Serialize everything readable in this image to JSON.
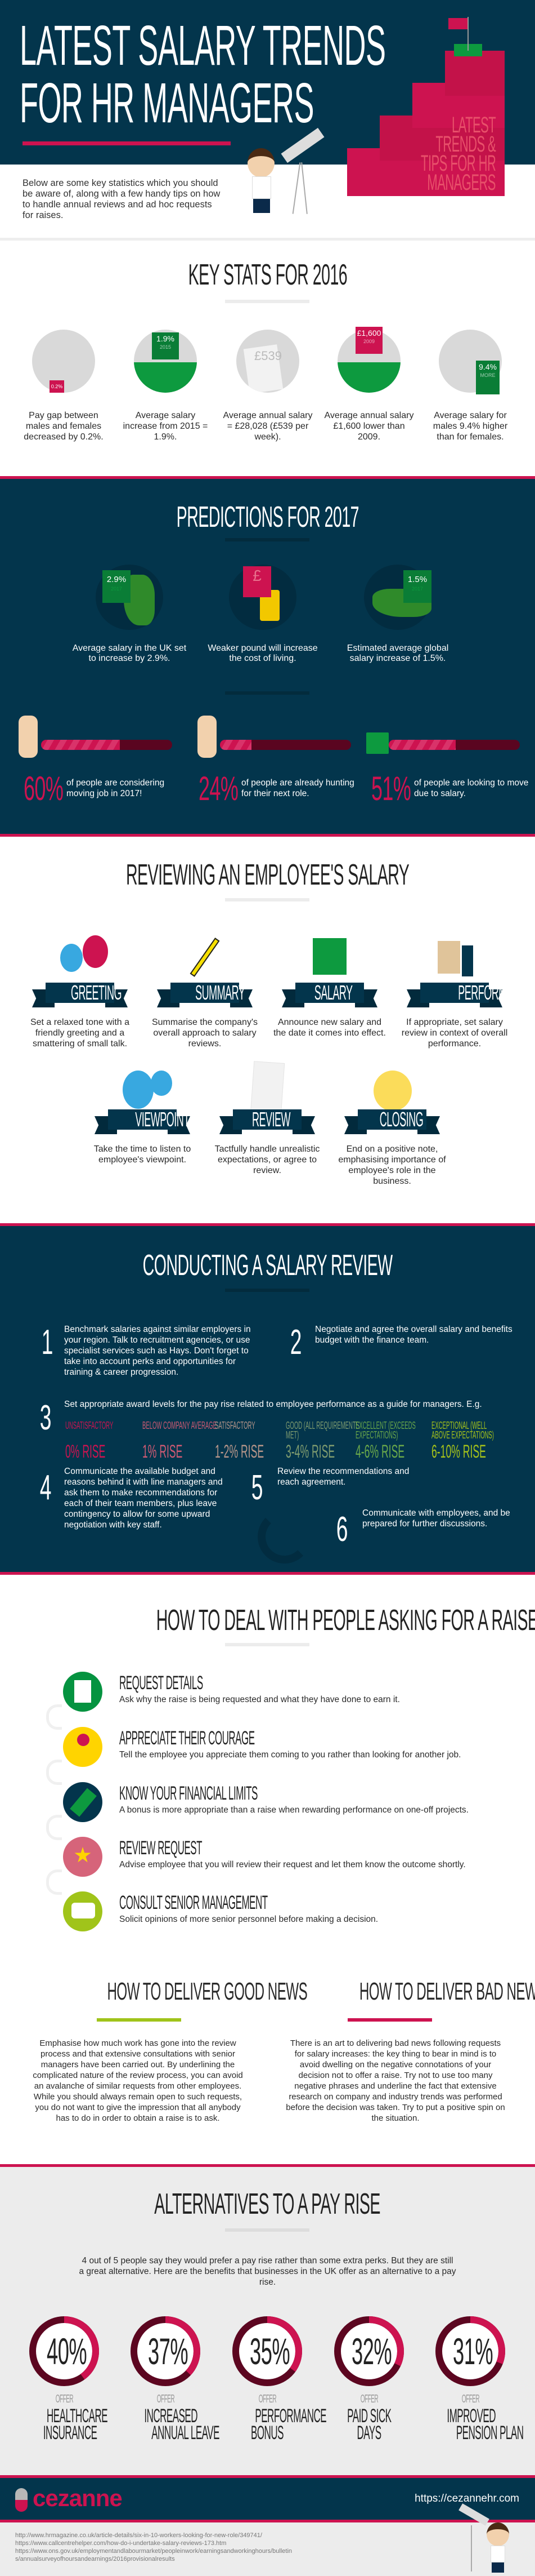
{
  "colors": {
    "navy": "#03354c",
    "pink": "#cd1350",
    "green": "#059340",
    "lime": "#a0c41a",
    "yellow": "#ffd400"
  },
  "hero": {
    "title_line1": "LATEST SALARY TRENDS",
    "title_line2": "FOR HR MANAGERS",
    "stairs_text": [
      "LATEST",
      "TRENDS &",
      "TIPS FOR HR",
      "MANAGERS"
    ],
    "intro": "Below are some key statistics which you should be aware of, along with a few handy tips on how to handle annual reviews and ad hoc requests for raises."
  },
  "key_stats": {
    "title": "KEY STATS FOR 2016",
    "items": [
      {
        "icon": "couple-icon",
        "badge": "0.2%",
        "text": "Pay gap between males and females decreased by 0.2%."
      },
      {
        "icon": "arrow-up-money-icon",
        "badge": "1.9%",
        "badge_sub": "2015",
        "text": "Average salary increase from 2015 = 1.9%."
      },
      {
        "icon": "payslip-icon",
        "badge": "£539",
        "text": "Average annual salary = £28,028 (£539 per week)."
      },
      {
        "icon": "arrow-down-money-icon",
        "badge": "£1,600",
        "badge_sub": "2009",
        "text": "Average annual salary £1,600 lower than 2009."
      },
      {
        "icon": "man-arrow-up-icon",
        "badge": "9.4%",
        "badge_sub": "MORE",
        "text": "Average salary for males 9.4% higher than for females."
      }
    ]
  },
  "predictions": {
    "title": "PREDICTIONS FOR 2017",
    "items": [
      {
        "icon": "uk-map-icon",
        "badge": "2.9%",
        "badge_sub": "2017",
        "text": "Average salary in the UK set to increase by 2.9%."
      },
      {
        "icon": "pound-coins-icon",
        "badge": "£",
        "text": "Weaker pound will increase the cost of living."
      },
      {
        "icon": "world-map-icon",
        "badge": "1.5%",
        "badge_sub": "2017",
        "text": "Estimated average global salary increase of 1.5%."
      }
    ],
    "stats": [
      {
        "value": "60%",
        "percent": 60,
        "text": "of people are considering moving job in 2017!"
      },
      {
        "value": "24%",
        "percent": 24,
        "text": "of people are already hunting for their next role."
      },
      {
        "value": "51%",
        "percent": 51,
        "text": "of people are looking to move due to salary."
      }
    ]
  },
  "reviewing": {
    "title": "REVIEWING AN EMPLOYEE'S SALARY",
    "steps": [
      {
        "label": "GREETING",
        "icon": "speech-bubbles-icon",
        "text": "Set a relaxed tone with a friendly greeting and a smattering of small talk."
      },
      {
        "label": "SUMMARY",
        "icon": "pencil-icon",
        "text": "Summarise the company's overall approach to salary reviews."
      },
      {
        "label": "SALARY",
        "icon": "money-stacks-icon",
        "text": "Announce new salary and the date it comes into effect."
      },
      {
        "label": "PERFORMANCE",
        "icon": "thumbs-up-icon",
        "text": "If appropriate, set salary review in context of overall performance."
      },
      {
        "label": "VIEWPOINT",
        "icon": "chat-bubbles-icon",
        "text": "Take the time to listen to employee's viewpoint."
      },
      {
        "label": "REVIEW",
        "icon": "checklist-icon",
        "text": "Tactfully handle unrealistic expectations, or agree to review."
      },
      {
        "label": "CLOSING",
        "icon": "smiley-icon",
        "text": "End on a positive note, emphasising importance of employee's role in the business."
      }
    ]
  },
  "conducting": {
    "title": "CONDUCTING A SALARY REVIEW",
    "steps": [
      {
        "n": "1",
        "text": "Benchmark salaries against similar employers in your region. Talk to recruitment agencies, or use specialist services such as Hays. Don't forget to take into account perks and opportunities for training & career progression."
      },
      {
        "n": "2",
        "text": "Negotiate and agree the overall salary and benefits budget with the finance team."
      },
      {
        "n": "3",
        "text": "Set appropriate award levels for the pay rise related to employee performance as a guide for managers. E.g."
      },
      {
        "n": "4",
        "text": "Communicate the available budget and reasons behind it with line managers and ask them to make recommendations for each of their team members, plus leave contingency to allow for some upward negotiation with key staff."
      },
      {
        "n": "5",
        "text": "Review the recommendations and reach agreement."
      },
      {
        "n": "6",
        "text": "Communicate with employees, and be prepared for further discussions."
      }
    ],
    "levels": [
      {
        "label": "UNSATISFACTORY",
        "rise": "0% RISE",
        "color": "#cd1350"
      },
      {
        "label": "BELOW COMPANY AVERAGE",
        "rise": "1% RISE",
        "color": "#cf5a73"
      },
      {
        "label": "SATISFACTORY",
        "rise": "1-2% RISE",
        "color": "#b7968a"
      },
      {
        "label": "GOOD (ALL REQUIREMENTS MET)",
        "rise": "3-4% RISE",
        "color": "#7f9c6f"
      },
      {
        "label": "EXCELLENT (EXCEEDS EXPECTATIONS)",
        "rise": "4-6% RISE",
        "color": "#6aa84a"
      },
      {
        "label": "EXCEPTIONAL (WELL ABOVE EXPECTATIONS)",
        "rise": "6-10% RISE",
        "color": "#a5c21a"
      }
    ]
  },
  "raise": {
    "title": "HOW TO DEAL WITH PEOPLE ASKING FOR A RAISE",
    "items": [
      {
        "title": "REQUEST DETAILS",
        "icon": "document-icon",
        "color": "#059340",
        "text": "Ask why the raise is being requested and what they have done to earn it."
      },
      {
        "title": "APPRECIATE THEIR COURAGE",
        "icon": "award-ribbon-icon",
        "color": "#ffd400",
        "text": "Tell the employee you appreciate them coming to you rather than looking for another job."
      },
      {
        "title": "KNOW YOUR FINANCIAL LIMITS",
        "icon": "banknote-icon",
        "color": "#03354c",
        "text": "A bonus is more appropriate than a raise when rewarding performance on one-off projects."
      },
      {
        "title": "REVIEW REQUEST",
        "icon": "star-icon",
        "color": "#d6647a",
        "text": "Advise employee that you will review their request and let them know the outcome shortly."
      },
      {
        "title": "CONSULT SENIOR MANAGEMENT",
        "icon": "chat-icon",
        "color": "#a0c41a",
        "text": "Solicit opinions of more senior personnel before making a decision."
      }
    ]
  },
  "news": {
    "good_title": "HOW TO DELIVER GOOD NEWS",
    "good_text": "Emphasise how much work has gone into the review process and that extensive consultations with senior managers have been carried out. By underlining the complicated nature of the review process, you can avoid an avalanche of similar requests from other employees. While you should always remain open to such requests, you do not want to give the impression that all anybody has to do in order to obtain a raise is to ask.",
    "bad_title": "HOW TO DELIVER BAD NEWS",
    "bad_text": "There is an art to delivering bad news following requests for salary increases: the key thing to bear in mind is to avoid dwelling on the negative connotations of your decision not to offer a raise. Try not to use too many negative phrases and underline the fact that extensive research on company and industry trends was performed before the decision was taken. Try to put a positive spin on the situation."
  },
  "alternatives": {
    "title": "ALTERNATIVES TO A PAY RISE",
    "intro": "4 out of 5 people say they would prefer a pay rise rather than some extra perks. But they are still a great alternative. Here are the benefits that businesses in the UK offer as an alternative to a pay rise.",
    "offer_label": "OFFER",
    "items": [
      {
        "value": "40%",
        "percent": 40,
        "label": [
          "HEALTHCARE",
          "INSURANCE"
        ]
      },
      {
        "value": "37%",
        "percent": 37,
        "label": [
          "INCREASED",
          "ANNUAL LEAVE"
        ]
      },
      {
        "value": "35%",
        "percent": 35,
        "label": [
          "PERFORMANCE",
          "BONUS"
        ]
      },
      {
        "value": "32%",
        "percent": 32,
        "label": [
          "PAID SICK",
          "DAYS"
        ]
      },
      {
        "value": "31%",
        "percent": 31,
        "label": [
          "IMPROVED",
          "PENSION PLAN"
        ]
      }
    ]
  },
  "footer": {
    "logo": "cezanne",
    "url": "https://cezannehr.com",
    "sources": [
      "http://www.hrmagazine.co.uk/article-details/six-in-10-workers-looking-for-new-role/349741/",
      "https://www.callcentrehelper.com/how-do-i-undertake-salary-reviews-173.htm",
      "https://www.ons.gov.uk/employmentandlabourmarket/peopleinwork/earningsandworkinghours/bulletin",
      "s/annualsurveyofhoursandearnings/2016provisionalresults"
    ]
  }
}
